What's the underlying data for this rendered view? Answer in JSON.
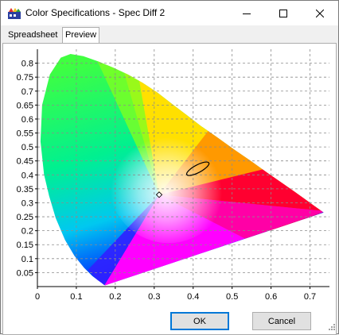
{
  "window": {
    "title": "Color Specifications - Spec Diff 2",
    "icon": "color-spec-app-icon"
  },
  "tabs": [
    {
      "label": "Spreadsheet",
      "active": false
    },
    {
      "label": "Preview",
      "active": true
    }
  ],
  "buttons": {
    "ok_label": "OK",
    "cancel_label": "Cancel"
  },
  "chart_data": {
    "type": "scatter",
    "title": "",
    "xlabel": "",
    "ylabel": "",
    "xlim": [
      0,
      0.75
    ],
    "ylim": [
      0,
      0.85
    ],
    "x_ticks": [
      "0",
      "0.1",
      "0.2",
      "0.3",
      "0.4",
      "0.5",
      "0.6",
      "0.7"
    ],
    "y_ticks": [
      "0.05",
      "0.1",
      "0.15",
      "0.2",
      "0.25",
      "0.3",
      "0.35",
      "0.4",
      "0.45",
      "0.5",
      "0.55",
      "0.6",
      "0.65",
      "0.7",
      "0.75",
      "0.8"
    ],
    "grid": true,
    "white_point": {
      "x": 0.3127,
      "y": 0.329
    },
    "tolerance_ellipse": {
      "cx": 0.412,
      "cy": 0.422,
      "rx": 0.032,
      "ry": 0.025,
      "angle_deg": 28
    },
    "spectral_locus": [
      [
        0.175,
        0.005
      ],
      [
        0.173,
        0.005
      ],
      [
        0.17,
        0.007
      ],
      [
        0.165,
        0.013
      ],
      [
        0.155,
        0.023
      ],
      [
        0.141,
        0.038
      ],
      [
        0.12,
        0.067
      ],
      [
        0.095,
        0.11
      ],
      [
        0.071,
        0.167
      ],
      [
        0.047,
        0.245
      ],
      [
        0.03,
        0.325
      ],
      [
        0.017,
        0.402
      ],
      [
        0.008,
        0.52
      ],
      [
        0.012,
        0.65
      ],
      [
        0.032,
        0.76
      ],
      [
        0.06,
        0.82
      ],
      [
        0.085,
        0.833
      ],
      [
        0.118,
        0.825
      ],
      [
        0.157,
        0.806
      ],
      [
        0.195,
        0.784
      ],
      [
        0.233,
        0.759
      ],
      [
        0.27,
        0.73
      ],
      [
        0.308,
        0.695
      ],
      [
        0.345,
        0.655
      ],
      [
        0.383,
        0.615
      ],
      [
        0.42,
        0.575
      ],
      [
        0.461,
        0.535
      ],
      [
        0.506,
        0.49
      ],
      [
        0.548,
        0.45
      ],
      [
        0.59,
        0.408
      ],
      [
        0.629,
        0.37
      ],
      [
        0.66,
        0.34
      ],
      [
        0.686,
        0.314
      ],
      [
        0.705,
        0.295
      ],
      [
        0.725,
        0.275
      ],
      [
        0.735,
        0.265
      ]
    ],
    "primaries": {
      "red": [
        0.64,
        0.33
      ],
      "green": [
        0.3,
        0.6
      ],
      "blue": [
        0.15,
        0.06
      ]
    }
  }
}
